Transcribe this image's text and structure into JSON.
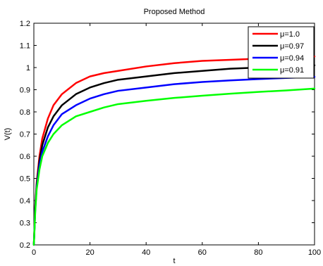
{
  "chart_data": {
    "type": "line",
    "title": "Proposed Method",
    "xlabel": "t",
    "ylabel": "V(t)",
    "xlim": [
      0,
      100
    ],
    "ylim": [
      0.2,
      1.2
    ],
    "xticks": [
      0,
      20,
      40,
      60,
      80,
      100
    ],
    "xtick_labels": [
      "0",
      "20",
      "40",
      "60",
      "80",
      "100"
    ],
    "yticks": [
      0.2,
      0.3,
      0.4,
      0.5,
      0.6,
      0.7,
      0.8,
      0.9,
      1.0,
      1.1,
      1.2
    ],
    "ytick_labels": [
      "0.2",
      "0.3",
      "0.4",
      "0.5",
      "0.6",
      "0.7",
      "0.8",
      "0.9",
      "1",
      "1.1",
      "1.2"
    ],
    "grid": false,
    "legend_position": "top-right",
    "x": [
      0,
      0.5,
      1,
      2,
      3,
      5,
      7,
      10,
      15,
      20,
      25,
      30,
      40,
      50,
      60,
      70,
      80,
      90,
      100
    ],
    "series": [
      {
        "name": "μ=1.0",
        "color": "#ff0000",
        "values": [
          0.2,
          0.38,
          0.48,
          0.6,
          0.68,
          0.77,
          0.83,
          0.88,
          0.93,
          0.96,
          0.975,
          0.985,
          1.005,
          1.02,
          1.03,
          1.035,
          1.04,
          1.045,
          1.05
        ]
      },
      {
        "name": "μ=0.97",
        "color": "#000000",
        "values": [
          0.2,
          0.37,
          0.47,
          0.58,
          0.65,
          0.73,
          0.78,
          0.83,
          0.88,
          0.91,
          0.93,
          0.945,
          0.96,
          0.975,
          0.985,
          0.995,
          1.0,
          1.005,
          1.01
        ]
      },
      {
        "name": "μ=0.94",
        "color": "#0000ff",
        "values": [
          0.2,
          0.36,
          0.46,
          0.56,
          0.62,
          0.69,
          0.74,
          0.79,
          0.83,
          0.86,
          0.88,
          0.895,
          0.91,
          0.925,
          0.935,
          0.942,
          0.948,
          0.953,
          0.958
        ]
      },
      {
        "name": "μ=0.91",
        "color": "#00ff00",
        "values": [
          0.2,
          0.35,
          0.45,
          0.54,
          0.6,
          0.66,
          0.7,
          0.74,
          0.78,
          0.8,
          0.82,
          0.835,
          0.85,
          0.863,
          0.873,
          0.882,
          0.89,
          0.897,
          0.905
        ]
      }
    ]
  }
}
